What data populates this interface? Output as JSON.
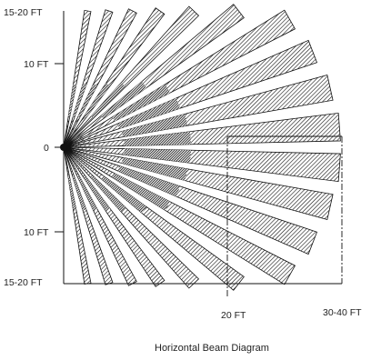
{
  "diagram": {
    "caption": "Horizontal Beam Diagram",
    "left_labels": {
      "top": "15-20 FT",
      "upper": "10 FT",
      "center": "0",
      "lower": "10 FT",
      "bottom": "15-20 FT"
    },
    "bottom_labels": {
      "mid": "20 FT",
      "far": "30-40 FT"
    },
    "beam_count": 20,
    "colors": {
      "hatch": "#000000",
      "dark_band": "#1a1a1a",
      "line": "#111111"
    }
  }
}
